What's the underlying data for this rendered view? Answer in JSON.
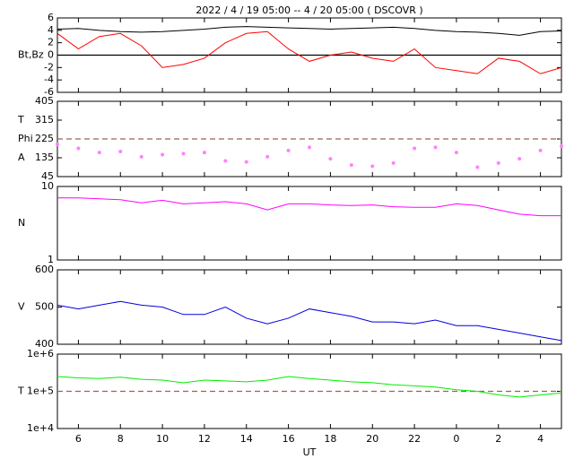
{
  "chart_data": [
    {
      "type": "line",
      "title": "2022 /  4 / 19   05:00  --   4 / 20   05:00 ( DSCOVR )",
      "ylabel": [
        "Bt,Bz"
      ],
      "x": [
        5,
        6,
        7,
        8,
        9,
        10,
        11,
        12,
        13,
        14,
        15,
        16,
        17,
        18,
        19,
        20,
        21,
        22,
        23,
        24,
        25,
        26,
        27,
        28,
        29
      ],
      "xlim": [
        5,
        29
      ],
      "ylim": [
        -6,
        6
      ],
      "yticks": [
        -6,
        -4,
        -2,
        0,
        2,
        4,
        6
      ],
      "hline": 0,
      "hline_color": "#000000",
      "hline_style": "solid",
      "series": [
        {
          "color": "#000000",
          "values": [
            4.2,
            4.3,
            4.0,
            3.8,
            3.7,
            3.8,
            4.0,
            4.2,
            4.5,
            4.6,
            4.5,
            4.4,
            4.3,
            4.2,
            4.3,
            4.4,
            4.5,
            4.3,
            4.0,
            3.8,
            3.7,
            3.5,
            3.2,
            3.8,
            3.9
          ]
        },
        {
          "color": "#ff0000",
          "values": [
            3.5,
            1,
            3,
            3.5,
            1.5,
            -2,
            -1.5,
            -0.5,
            2,
            3.5,
            3.8,
            1,
            -1,
            0,
            0.5,
            -0.5,
            -1,
            1,
            -2,
            -2.5,
            -3,
            -0.5,
            -1,
            -3,
            -2
          ]
        }
      ]
    },
    {
      "type": "scatter",
      "ylabel": [
        "T",
        "Phi",
        "A"
      ],
      "x": [
        5,
        6,
        7,
        8,
        9,
        10,
        11,
        12,
        13,
        14,
        15,
        16,
        17,
        18,
        19,
        20,
        21,
        22,
        23,
        24,
        25,
        26,
        27,
        28,
        29
      ],
      "xlim": [
        5,
        29
      ],
      "ylim": [
        45,
        405
      ],
      "yticks": [
        45,
        135,
        225,
        315,
        405
      ],
      "hline": 225,
      "hline_color": "#a06050",
      "hline_style": "dashed",
      "series": [
        {
          "color": "#ff80ff",
          "values": [
            200,
            180,
            160,
            165,
            140,
            150,
            155,
            160,
            120,
            115,
            140,
            170,
            185,
            130,
            100,
            95,
            110,
            180,
            185,
            160,
            90,
            110,
            130,
            170,
            190
          ]
        }
      ]
    },
    {
      "type": "line",
      "ylabel": [
        "N"
      ],
      "log": true,
      "x": [
        5,
        6,
        7,
        8,
        9,
        10,
        11,
        12,
        13,
        14,
        15,
        16,
        17,
        18,
        19,
        20,
        21,
        22,
        23,
        24,
        25,
        26,
        27,
        28,
        29
      ],
      "xlim": [
        5,
        29
      ],
      "ylim": [
        1,
        10
      ],
      "yticks": [
        1,
        10
      ],
      "series": [
        {
          "color": "#ff00ff",
          "values": [
            7,
            7,
            6.8,
            6.6,
            6,
            6.5,
            5.8,
            6,
            6.2,
            5.8,
            4.8,
            5.8,
            5.8,
            5.6,
            5.5,
            5.6,
            5.3,
            5.2,
            5.2,
            5.8,
            5.5,
            4.8,
            4.2,
            4,
            4
          ]
        }
      ]
    },
    {
      "type": "line",
      "ylabel": [
        "V"
      ],
      "x": [
        5,
        6,
        7,
        8,
        9,
        10,
        11,
        12,
        13,
        14,
        15,
        16,
        17,
        18,
        19,
        20,
        21,
        22,
        23,
        24,
        25,
        26,
        27,
        28,
        29
      ],
      "xlim": [
        5,
        29
      ],
      "ylim": [
        400,
        600
      ],
      "yticks": [
        400,
        500,
        600
      ],
      "series": [
        {
          "color": "#0000dd",
          "values": [
            505,
            495,
            505,
            515,
            505,
            500,
            480,
            480,
            500,
            470,
            455,
            470,
            495,
            485,
            475,
            460,
            460,
            455,
            465,
            450,
            450,
            440,
            430,
            420,
            410
          ]
        }
      ]
    },
    {
      "type": "line",
      "ylabel": [
        "T"
      ],
      "log": true,
      "xlabel": "UT",
      "x": [
        5,
        6,
        7,
        8,
        9,
        10,
        11,
        12,
        13,
        14,
        15,
        16,
        17,
        18,
        19,
        20,
        21,
        22,
        23,
        24,
        25,
        26,
        27,
        28,
        29
      ],
      "xlim": [
        5,
        29
      ],
      "xticks": [
        6,
        8,
        10,
        12,
        14,
        16,
        18,
        20,
        22,
        {
          "value": 24,
          "label": "0"
        },
        {
          "value": 26,
          "label": "2"
        },
        {
          "value": 28,
          "label": "4"
        }
      ],
      "ylim": [
        10000,
        1000000
      ],
      "yticks": [
        {
          "value": 10000,
          "label": "1e+4"
        },
        {
          "value": 100000,
          "label": "1e+5"
        },
        {
          "value": 1000000,
          "label": "1e+6"
        }
      ],
      "hline": 100000,
      "hline_color": "#a06050",
      "hline_style": "dashed",
      "series": [
        {
          "color": "#00ee00",
          "values": [
            250000,
            230000,
            220000,
            240000,
            210000,
            200000,
            170000,
            200000,
            190000,
            180000,
            200000,
            250000,
            220000,
            200000,
            180000,
            170000,
            150000,
            140000,
            130000,
            110000,
            100000,
            80000,
            70000,
            80000,
            90000
          ]
        }
      ]
    }
  ]
}
